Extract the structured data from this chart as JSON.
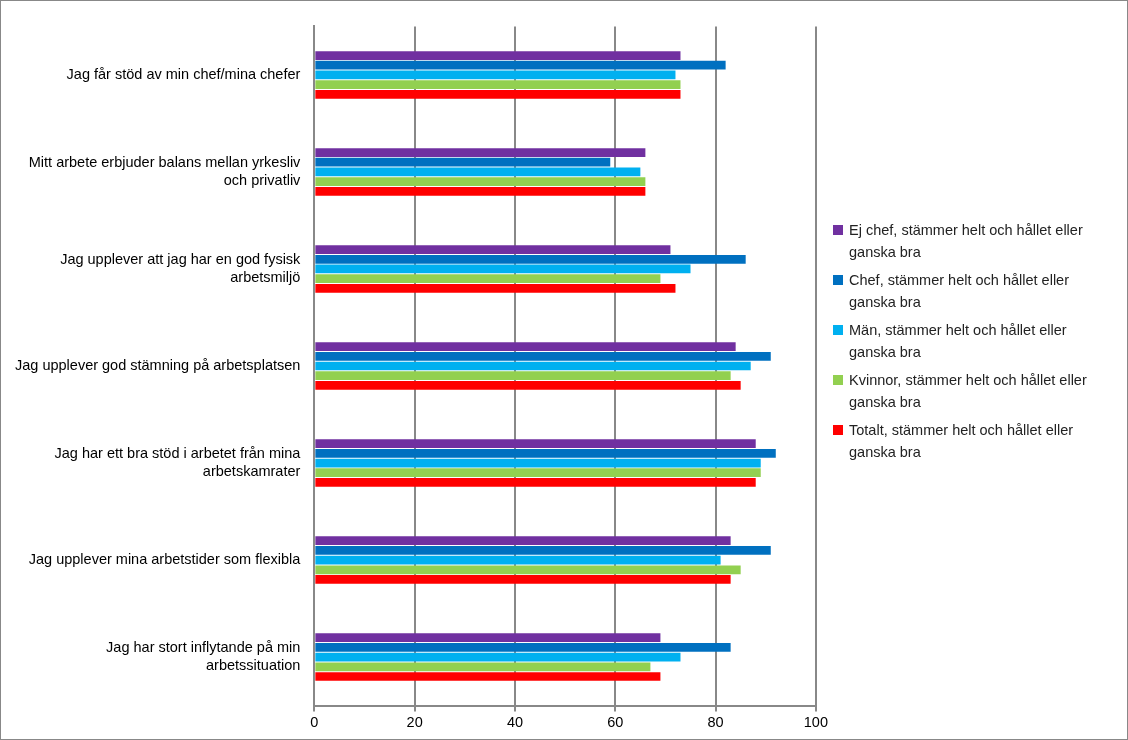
{
  "chart_data": {
    "type": "bar",
    "orientation": "horizontal",
    "categories": [
      "Jag får stöd av min chef/mina chefer",
      "Mitt arbete erbjuder balans mellan yrkesliv och privatliv",
      "Jag upplever att jag har en god fysisk arbetsmiljö",
      "Jag upplever god stämning på arbetsplatsen",
      "Jag har ett bra stöd i arbetet från mina arbetskamrater",
      "Jag upplever mina arbetstider som flexibla",
      "Jag har stort inflytande på min arbetssituation"
    ],
    "series": [
      {
        "name": "Ej chef, stämmer helt och hållet eller ganska bra",
        "color": "#7030a0",
        "values": [
          73,
          66,
          71,
          84,
          88,
          83,
          69
        ]
      },
      {
        "name": "Chef, stämmer helt och hållet eller ganska bra",
        "color": "#0070c0",
        "values": [
          82,
          59,
          86,
          91,
          92,
          91,
          83
        ]
      },
      {
        "name": "Män, stämmer helt och hållet eller ganska bra",
        "color": "#00b0f0",
        "values": [
          72,
          65,
          75,
          87,
          89,
          81,
          73
        ]
      },
      {
        "name": "Kvinnor, stämmer helt och hållet eller ganska bra",
        "color": "#92d050",
        "values": [
          73,
          66,
          69,
          83,
          89,
          85,
          67
        ]
      },
      {
        "name": "Totalt, stämmer helt och hållet eller ganska bra",
        "color": "#ff0000",
        "values": [
          73,
          66,
          72,
          85,
          88,
          83,
          69
        ]
      }
    ],
    "xlim": [
      0,
      100
    ],
    "xticks": [
      0,
      20,
      40,
      60,
      80,
      100
    ],
    "grid": "x",
    "legend": "right"
  }
}
